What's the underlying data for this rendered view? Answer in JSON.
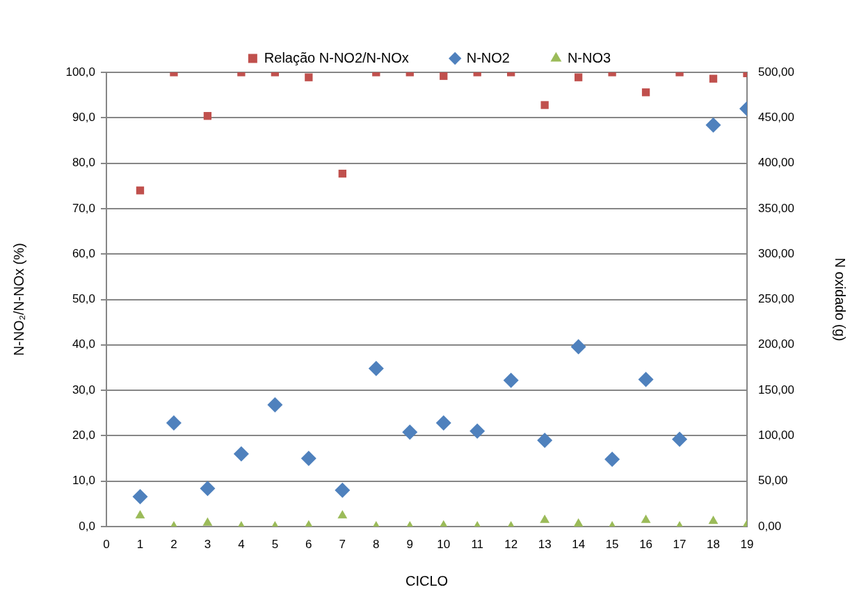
{
  "chart_data": {
    "type": "scatter",
    "xlabel": "CICLO",
    "ylabel": "N-NO₂/N-NOx (%)",
    "y2label": "N oxidado (g)",
    "x": [
      1,
      2,
      3,
      4,
      5,
      6,
      7,
      8,
      9,
      10,
      11,
      12,
      13,
      14,
      15,
      16,
      17,
      18,
      19
    ],
    "series": [
      {
        "name": "Relação N-NO2/N-NOx",
        "color": "#c0504d",
        "marker": "square",
        "values": [
          74.0,
          100,
          90.4,
          100,
          100,
          98.9,
          77.7,
          100,
          100,
          99.2,
          100,
          100,
          92.8,
          98.9,
          100,
          95.6,
          100,
          98.6,
          99.8
        ]
      },
      {
        "name": "N-NO2",
        "color": "#4f81bd",
        "marker": "diamond",
        "axis": "y2",
        "values": [
          33,
          114,
          42,
          80,
          134,
          75,
          40,
          174,
          104,
          114,
          105,
          161,
          95,
          198,
          74,
          162,
          96,
          442,
          460
        ]
      },
      {
        "name": "N-NO3",
        "color": "#9bbb59",
        "marker": "triangle",
        "axis": "y2",
        "values": [
          12,
          0,
          4,
          0,
          0,
          1,
          12,
          0,
          0,
          1,
          0,
          0,
          7,
          3,
          0,
          7,
          0,
          6,
          2
        ]
      }
    ],
    "xlim": [
      0,
      19
    ],
    "xticks": [
      0,
      1,
      2,
      3,
      4,
      5,
      6,
      7,
      8,
      9,
      10,
      11,
      12,
      13,
      14,
      15,
      16,
      17,
      18,
      19
    ],
    "ylim": [
      0,
      100
    ],
    "yticks": [
      {
        "value": 0,
        "label": "0,0"
      },
      {
        "value": 10,
        "label": "10,0"
      },
      {
        "value": 20,
        "label": "20,0"
      },
      {
        "value": 30,
        "label": "30,0"
      },
      {
        "value": 40,
        "label": "40,0"
      },
      {
        "value": 50,
        "label": "50,0"
      },
      {
        "value": 60,
        "label": "60,0"
      },
      {
        "value": 70,
        "label": "70,0"
      },
      {
        "value": 80,
        "label": "80,0"
      },
      {
        "value": 90,
        "label": "90,0"
      },
      {
        "value": 100,
        "label": "100,0"
      }
    ],
    "y2lim": [
      0,
      500
    ],
    "y2ticks": [
      {
        "value": 0,
        "label": "0,00"
      },
      {
        "value": 50,
        "label": "50,00"
      },
      {
        "value": 100,
        "label": "100,00"
      },
      {
        "value": 150,
        "label": "150,00"
      },
      {
        "value": 200,
        "label": "200,00"
      },
      {
        "value": 250,
        "label": "250,00"
      },
      {
        "value": 300,
        "label": "300,00"
      },
      {
        "value": 350,
        "label": "350,00"
      },
      {
        "value": 400,
        "label": "400,00"
      },
      {
        "value": 450,
        "label": "450,00"
      },
      {
        "value": 500,
        "label": "500,00"
      }
    ],
    "grid": "y",
    "legend": "top"
  }
}
